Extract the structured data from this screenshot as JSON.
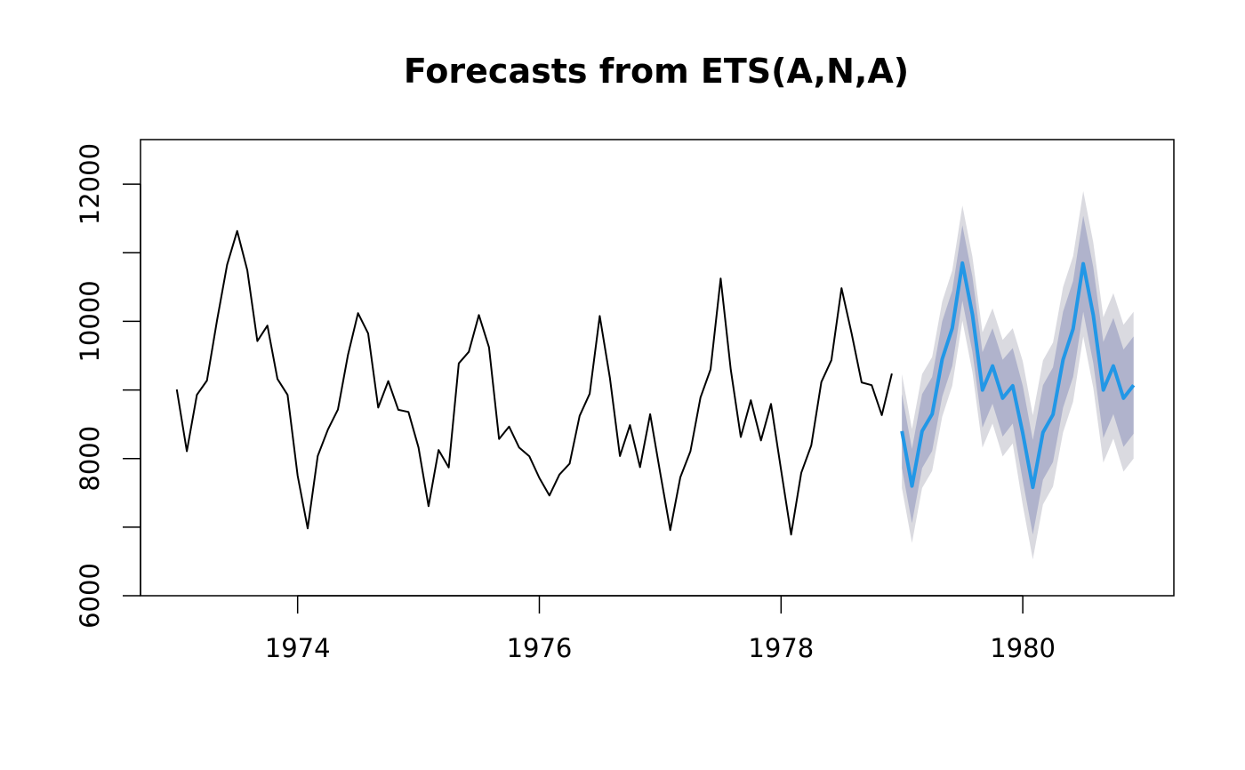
{
  "chart_data": {
    "type": "line",
    "title": "Forecasts from ETS(A,N,A)",
    "xlabel": "",
    "ylabel": "",
    "xlim": [
      1972.7,
      1981.25
    ],
    "ylim": [
      6000,
      12650
    ],
    "x_ticks": [
      1974,
      1976,
      1978,
      1980
    ],
    "x_tick_labels": [
      "1974",
      "1976",
      "1978",
      "1980"
    ],
    "y_ticks": [
      6000,
      7000,
      8000,
      9000,
      10000,
      11000,
      12000
    ],
    "y_tick_labels": [
      "6000",
      "",
      "8000",
      "",
      "10000",
      "",
      "12000"
    ],
    "colors": {
      "history": "#000000",
      "forecast": "#2297e6",
      "band80": "#b0b3cc",
      "band95": "#dadae0"
    },
    "history": {
      "start": 1973,
      "frequency": 12,
      "values": [
        9007,
        8106,
        8928,
        9137,
        10017,
        10826,
        11317,
        10744,
        9713,
        9938,
        9161,
        8927,
        7750,
        6981,
        8038,
        8422,
        8714,
        9512,
        10120,
        9823,
        8743,
        9129,
        8710,
        8680,
        8162,
        7306,
        8124,
        7870,
        9387,
        9556,
        10093,
        9620,
        8285,
        8466,
        8160,
        8034,
        7717,
        7461,
        7767,
        7925,
        8623,
        8945,
        10078,
        9179,
        8037,
        8488,
        7874,
        8647,
        7792,
        6957,
        7726,
        8106,
        8890,
        9299,
        10625,
        9302,
        8314,
        8850,
        8265,
        8796,
        7836,
        6892,
        7791,
        8192,
        9115,
        9434,
        10484,
        9827,
        9110,
        9070,
        8633,
        9240
      ]
    },
    "forecast": {
      "start": 1979,
      "frequency": 12,
      "mean": [
        8400,
        7600,
        8400,
        8650,
        9450,
        9900,
        10850,
        10100,
        9000,
        9350,
        8880,
        9060,
        8370,
        7580,
        8380,
        8640,
        9440,
        9890,
        10840,
        10090,
        9000,
        9350,
        8880,
        9070
      ],
      "lo80": [
        7860,
        7060,
        7860,
        8110,
        8900,
        9350,
        10300,
        9550,
        8450,
        8800,
        8320,
        8510,
        7680,
        6890,
        7690,
        7950,
        8740,
        9190,
        10140,
        9390,
        8300,
        8650,
        8170,
        8360
      ],
      "hi80": [
        8940,
        8140,
        8940,
        9190,
        10000,
        10450,
        11400,
        10650,
        9550,
        9900,
        9440,
        9610,
        9060,
        8270,
        9070,
        9330,
        10140,
        10590,
        11540,
        10790,
        9700,
        10050,
        9590,
        9780
      ],
      "lo95": [
        7570,
        6770,
        7570,
        7820,
        8610,
        9060,
        10010,
        9260,
        8160,
        8510,
        8030,
        8220,
        7320,
        6530,
        7330,
        7590,
        8380,
        8830,
        9780,
        9030,
        7940,
        8290,
        7810,
        8000
      ],
      "hi95": [
        9230,
        8430,
        9230,
        9480,
        10290,
        10740,
        11690,
        10940,
        9840,
        10190,
        9730,
        9900,
        9420,
        8630,
        9430,
        9690,
        10500,
        10950,
        11900,
        11150,
        10060,
        10410,
        9950,
        10140
      ]
    }
  }
}
